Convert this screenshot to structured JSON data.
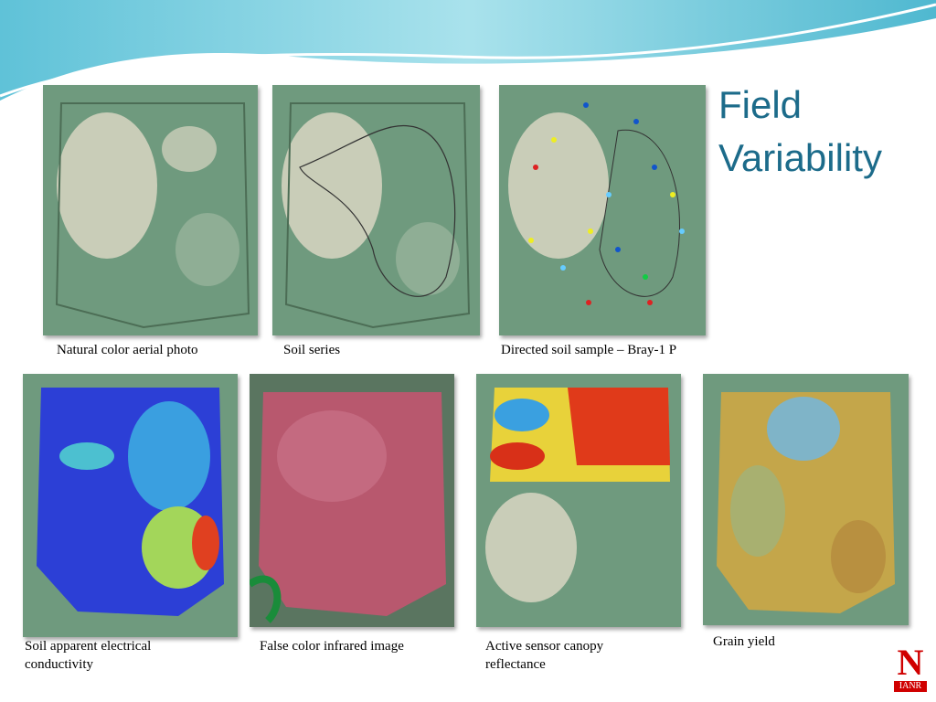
{
  "title": "Field Variability",
  "panels": [
    {
      "caption": "Natural color aerial photo"
    },
    {
      "caption": "Soil series"
    },
    {
      "caption": "Directed soil sample – Bray-1 P"
    },
    {
      "caption": "Soil apparent electrical conductivity"
    },
    {
      "caption": "False color infrared image"
    },
    {
      "caption": "Active sensor canopy reflectance"
    },
    {
      "caption": "Grain yield"
    }
  ],
  "logo": {
    "letter": "N",
    "text": "IANR"
  }
}
